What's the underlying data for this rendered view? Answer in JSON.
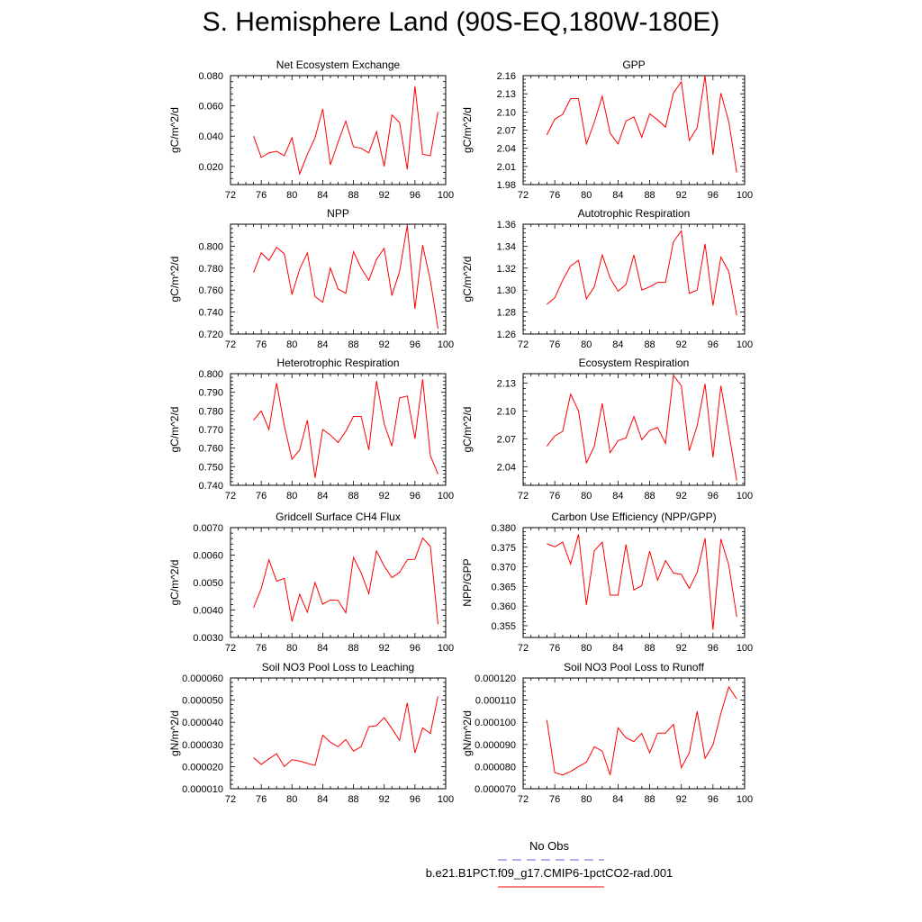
{
  "page": {
    "title": "S. Hemisphere Land (90S-EQ,180W-180E)"
  },
  "legend": [
    {
      "label": "No Obs",
      "color": "#6666cc",
      "style": "dashed"
    },
    {
      "label": "b.e21.B1PCT.f09_g17.CMIP6-1pctCO2-rad.001",
      "color": "#ff0000",
      "style": "solid"
    }
  ],
  "chart_data": [
    {
      "type": "line",
      "title": "Net Ecosystem Exchange",
      "ylabel": "gC/m^2/d",
      "xlim": [
        72,
        100
      ],
      "ylim": [
        0.008,
        0.08
      ],
      "yticks": [
        0.02,
        0.04,
        0.06,
        0.08
      ],
      "ytick_labels": [
        "0.020",
        "0.040",
        "0.060",
        "0.080"
      ],
      "xticks": [
        72,
        76,
        80,
        84,
        88,
        92,
        96,
        100
      ],
      "series": [
        {
          "color": "#ff0000",
          "x": [
            75,
            76,
            77,
            78,
            79,
            80,
            81,
            82,
            83,
            84,
            85,
            86,
            87,
            88,
            89,
            90,
            91,
            92,
            93,
            94,
            95,
            96,
            97,
            98,
            99
          ],
          "values": [
            0.04,
            0.026,
            0.029,
            0.03,
            0.027,
            0.039,
            0.015,
            0.028,
            0.039,
            0.058,
            0.021,
            0.036,
            0.05,
            0.033,
            0.032,
            0.029,
            0.043,
            0.02,
            0.054,
            0.049,
            0.018,
            0.073,
            0.028,
            0.027,
            0.056
          ]
        }
      ]
    },
    {
      "type": "line",
      "title": "GPP",
      "ylabel": "gC/m^2/d",
      "xlim": [
        72,
        100
      ],
      "ylim": [
        1.98,
        2.16
      ],
      "yticks": [
        1.98,
        2.01,
        2.04,
        2.07,
        2.1,
        2.13,
        2.16
      ],
      "ytick_labels": [
        "1.98",
        "2.01",
        "2.04",
        "2.07",
        "2.10",
        "2.13",
        "2.16"
      ],
      "xticks": [
        72,
        76,
        80,
        84,
        88,
        92,
        96,
        100
      ],
      "series": [
        {
          "color": "#ff0000",
          "x": [
            75,
            76,
            77,
            78,
            79,
            80,
            81,
            82,
            83,
            84,
            85,
            86,
            87,
            88,
            89,
            90,
            91,
            92,
            93,
            94,
            95,
            96,
            97,
            98,
            99
          ],
          "values": [
            2.062,
            2.088,
            2.096,
            2.122,
            2.122,
            2.047,
            2.083,
            2.126,
            2.065,
            2.047,
            2.085,
            2.092,
            2.058,
            2.097,
            2.087,
            2.075,
            2.131,
            2.15,
            2.053,
            2.074,
            2.16,
            2.029,
            2.131,
            2.084,
            2.0
          ]
        }
      ]
    },
    {
      "type": "line",
      "title": "NPP",
      "ylabel": "gC/m^2/d",
      "xlim": [
        72,
        100
      ],
      "ylim": [
        0.72,
        0.82
      ],
      "yticks": [
        0.72,
        0.74,
        0.76,
        0.78,
        0.8
      ],
      "ytick_labels": [
        "0.720",
        "0.740",
        "0.760",
        "0.780",
        "0.800"
      ],
      "xticks": [
        72,
        76,
        80,
        84,
        88,
        92,
        96,
        100
      ],
      "series": [
        {
          "color": "#ff0000",
          "x": [
            75,
            76,
            77,
            78,
            79,
            80,
            81,
            82,
            83,
            84,
            85,
            86,
            87,
            88,
            89,
            90,
            91,
            92,
            93,
            94,
            95,
            96,
            97,
            98,
            99
          ],
          "values": [
            0.776,
            0.794,
            0.787,
            0.799,
            0.793,
            0.756,
            0.779,
            0.794,
            0.754,
            0.749,
            0.78,
            0.761,
            0.757,
            0.795,
            0.78,
            0.769,
            0.788,
            0.798,
            0.755,
            0.777,
            0.819,
            0.743,
            0.801,
            0.769,
            0.725
          ]
        }
      ]
    },
    {
      "type": "line",
      "title": "Autotrophic Respiration",
      "ylabel": "gC/m^2/d",
      "xlim": [
        72,
        100
      ],
      "ylim": [
        1.26,
        1.36
      ],
      "yticks": [
        1.26,
        1.28,
        1.3,
        1.32,
        1.34,
        1.36
      ],
      "ytick_labels": [
        "1.26",
        "1.28",
        "1.30",
        "1.32",
        "1.34",
        "1.36"
      ],
      "xticks": [
        72,
        76,
        80,
        84,
        88,
        92,
        96,
        100
      ],
      "series": [
        {
          "color": "#ff0000",
          "x": [
            75,
            76,
            77,
            78,
            79,
            80,
            81,
            82,
            83,
            84,
            85,
            86,
            87,
            88,
            89,
            90,
            91,
            92,
            93,
            94,
            95,
            96,
            97,
            98,
            99
          ],
          "values": [
            1.287,
            1.293,
            1.309,
            1.322,
            1.327,
            1.292,
            1.303,
            1.332,
            1.311,
            1.299,
            1.305,
            1.332,
            1.3,
            1.303,
            1.307,
            1.307,
            1.344,
            1.354,
            1.297,
            1.3,
            1.342,
            1.286,
            1.33,
            1.317,
            1.277
          ]
        }
      ]
    },
    {
      "type": "line",
      "title": "Heterotrophic Respiration",
      "ylabel": "gC/m^2/d",
      "xlim": [
        72,
        100
      ],
      "ylim": [
        0.74,
        0.8
      ],
      "yticks": [
        0.74,
        0.75,
        0.76,
        0.77,
        0.78,
        0.79,
        0.8
      ],
      "ytick_labels": [
        "0.740",
        "0.750",
        "0.760",
        "0.770",
        "0.780",
        "0.790",
        "0.800"
      ],
      "xticks": [
        72,
        76,
        80,
        84,
        88,
        92,
        96,
        100
      ],
      "series": [
        {
          "color": "#ff0000",
          "x": [
            75,
            76,
            77,
            78,
            79,
            80,
            81,
            82,
            83,
            84,
            85,
            86,
            87,
            88,
            89,
            90,
            91,
            92,
            93,
            94,
            95,
            96,
            97,
            98,
            99
          ],
          "values": [
            0.775,
            0.78,
            0.77,
            0.795,
            0.772,
            0.754,
            0.759,
            0.775,
            0.744,
            0.77,
            0.767,
            0.763,
            0.769,
            0.777,
            0.777,
            0.759,
            0.796,
            0.773,
            0.761,
            0.787,
            0.788,
            0.765,
            0.797,
            0.756,
            0.746
          ]
        }
      ]
    },
    {
      "type": "line",
      "title": "Ecosystem Respiration",
      "ylabel": "gC/m^2/d",
      "xlim": [
        72,
        100
      ],
      "ylim": [
        2.02,
        2.14
      ],
      "yticks": [
        2.04,
        2.07,
        2.1,
        2.13
      ],
      "ytick_labels": [
        "2.04",
        "2.07",
        "2.10",
        "2.13"
      ],
      "xticks": [
        72,
        76,
        80,
        84,
        88,
        92,
        96,
        100
      ],
      "series": [
        {
          "color": "#ff0000",
          "x": [
            75,
            76,
            77,
            78,
            79,
            80,
            81,
            82,
            83,
            84,
            85,
            86,
            87,
            88,
            89,
            90,
            91,
            92,
            93,
            94,
            95,
            96,
            97,
            98,
            99
          ],
          "values": [
            2.062,
            2.073,
            2.078,
            2.118,
            2.1,
            2.044,
            2.062,
            2.108,
            2.055,
            2.068,
            2.071,
            2.094,
            2.069,
            2.079,
            2.082,
            2.065,
            2.138,
            2.127,
            2.057,
            2.084,
            2.129,
            2.05,
            2.127,
            2.077,
            2.025
          ]
        }
      ]
    },
    {
      "type": "line",
      "title": "Gridcell Surface CH4 Flux",
      "ylabel": "gC/m^2/d",
      "xlim": [
        72,
        100
      ],
      "ylim": [
        0.003,
        0.007
      ],
      "yticks": [
        0.003,
        0.004,
        0.005,
        0.006,
        0.007
      ],
      "ytick_labels": [
        "0.0030",
        "0.0040",
        "0.0050",
        "0.0060",
        "0.0070"
      ],
      "xticks": [
        72,
        76,
        80,
        84,
        88,
        92,
        96,
        100
      ],
      "series": [
        {
          "color": "#ff0000",
          "x": [
            75,
            76,
            77,
            78,
            79,
            80,
            81,
            82,
            83,
            84,
            85,
            86,
            87,
            88,
            89,
            90,
            91,
            92,
            93,
            94,
            95,
            96,
            97,
            98,
            99
          ],
          "values": [
            0.00408,
            0.00478,
            0.00583,
            0.00505,
            0.00515,
            0.00358,
            0.00457,
            0.00392,
            0.005,
            0.00421,
            0.00437,
            0.00435,
            0.0039,
            0.00592,
            0.00535,
            0.0046,
            0.00615,
            0.0056,
            0.00518,
            0.00537,
            0.00583,
            0.00585,
            0.00662,
            0.00632,
            0.00348
          ]
        }
      ]
    },
    {
      "type": "line",
      "title": "Carbon Use Efficiency (NPP/GPP)",
      "ylabel": "NPP/GPP",
      "xlim": [
        72,
        100
      ],
      "ylim": [
        0.352,
        0.38
      ],
      "yticks": [
        0.355,
        0.36,
        0.365,
        0.37,
        0.375,
        0.38
      ],
      "ytick_labels": [
        "0.355",
        "0.360",
        "0.365",
        "0.370",
        "0.375",
        "0.380"
      ],
      "xticks": [
        72,
        76,
        80,
        84,
        88,
        92,
        96,
        100
      ],
      "series": [
        {
          "color": "#ff0000",
          "x": [
            75,
            76,
            77,
            78,
            79,
            80,
            81,
            82,
            83,
            84,
            85,
            86,
            87,
            88,
            89,
            90,
            91,
            92,
            93,
            94,
            95,
            96,
            97,
            98,
            99
          ],
          "values": [
            0.3759,
            0.3751,
            0.3763,
            0.3707,
            0.3783,
            0.3603,
            0.3741,
            0.3763,
            0.3628,
            0.3628,
            0.3757,
            0.3641,
            0.3652,
            0.374,
            0.3666,
            0.3716,
            0.3684,
            0.3681,
            0.3645,
            0.3686,
            0.3773,
            0.354,
            0.3771,
            0.3704,
            0.3573
          ]
        }
      ]
    },
    {
      "type": "line",
      "title": "Soil NO3 Pool Loss to Leaching",
      "ylabel": "gN/m^2/d",
      "xlim": [
        72,
        100
      ],
      "ylim": [
        1e-05,
        6e-05
      ],
      "yticks": [
        1e-05,
        2e-05,
        3e-05,
        4e-05,
        5e-05,
        6e-05
      ],
      "ytick_labels": [
        "0.000010",
        "0.000020",
        "0.000030",
        "0.000040",
        "0.000050",
        "0.000060"
      ],
      "xticks": [
        72,
        76,
        80,
        84,
        88,
        92,
        96,
        100
      ],
      "series": [
        {
          "color": "#ff0000",
          "x": [
            75,
            76,
            77,
            78,
            79,
            80,
            81,
            82,
            83,
            84,
            85,
            86,
            87,
            88,
            89,
            90,
            91,
            92,
            93,
            94,
            95,
            96,
            97,
            98,
            99
          ],
          "values": [
            2.4e-05,
            2.1e-05,
            2.35e-05,
            2.58e-05,
            2e-05,
            2.31e-05,
            2.25e-05,
            2.15e-05,
            2.05e-05,
            3.42e-05,
            3.1e-05,
            2.9e-05,
            3.22e-05,
            2.7e-05,
            2.9e-05,
            3.8e-05,
            3.85e-05,
            4.21e-05,
            3.72e-05,
            3.18e-05,
            4.88e-05,
            2.62e-05,
            3.75e-05,
            3.5e-05,
            5.18e-05
          ]
        }
      ]
    },
    {
      "type": "line",
      "title": "Soil NO3 Pool Loss to Runoff",
      "ylabel": "gN/m^2/d",
      "xlim": [
        72,
        100
      ],
      "ylim": [
        7e-05,
        0.00012
      ],
      "yticks": [
        7e-05,
        8e-05,
        9e-05,
        0.0001,
        0.00011,
        0.00012
      ],
      "ytick_labels": [
        "0.000070",
        "0.000080",
        "0.000090",
        "0.000100",
        "0.000110",
        "0.000120"
      ],
      "xticks": [
        72,
        76,
        80,
        84,
        88,
        92,
        96,
        100
      ],
      "series": [
        {
          "color": "#ff0000",
          "x": [
            75,
            76,
            77,
            78,
            79,
            80,
            81,
            82,
            83,
            84,
            85,
            86,
            87,
            88,
            89,
            90,
            91,
            92,
            93,
            94,
            95,
            96,
            97,
            98,
            99
          ],
          "values": [
            0.000101,
            7.73e-05,
            7.62e-05,
            7.78e-05,
            8e-05,
            8.2e-05,
            8.9e-05,
            8.7e-05,
            7.62e-05,
            9.75e-05,
            9.3e-05,
            9.13e-05,
            9.5e-05,
            8.62e-05,
            9.51e-05,
            9.51e-05,
            9.91e-05,
            7.95e-05,
            8.61e-05,
            0.000105,
            8.37e-05,
            8.98e-05,
            0.000104,
            0.000116,
            0.0001105
          ]
        }
      ]
    }
  ]
}
